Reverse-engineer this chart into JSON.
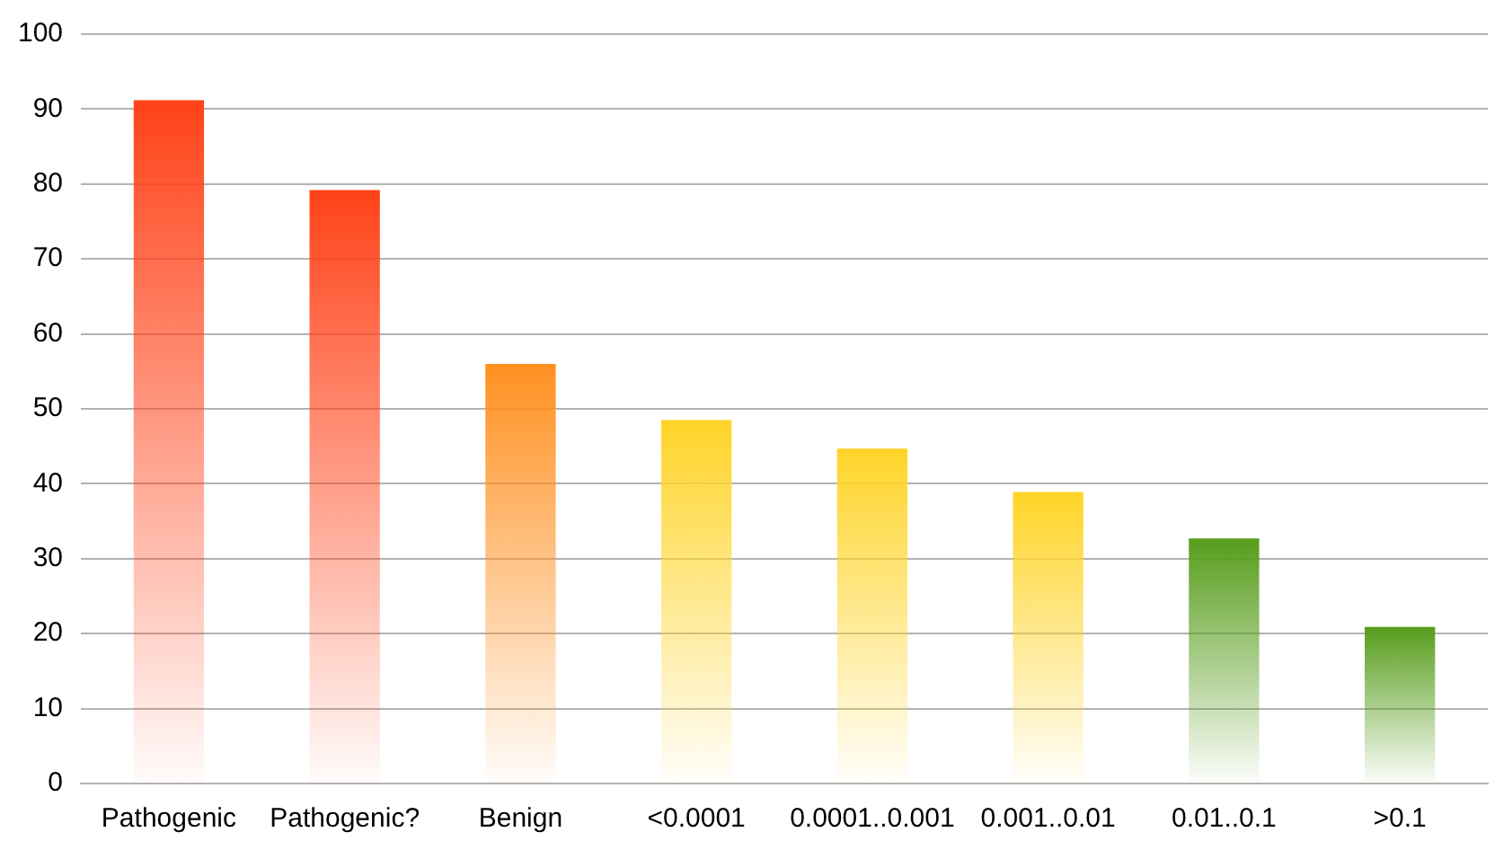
{
  "chart_data": {
    "type": "bar",
    "categories": [
      "Pathogenic",
      "Pathogenic?",
      "Benign",
      "<0.0001",
      "0.0001..0.001",
      "0.001..0.01",
      "0.01..0.1",
      ">0.1"
    ],
    "values": [
      91.2,
      79.2,
      56,
      48.5,
      44.7,
      38.9,
      32.7,
      20.9
    ],
    "colors": [
      "#ff4218",
      "#ff4218",
      "#ff9020",
      "#ffd428",
      "#ffd428",
      "#ffd428",
      "#579d1c",
      "#579d1c"
    ],
    "ylim": [
      0,
      100
    ],
    "yticks": [
      0,
      10,
      20,
      30,
      40,
      50,
      60,
      70,
      80,
      90,
      100
    ],
    "grid": "y",
    "legend": false
  }
}
